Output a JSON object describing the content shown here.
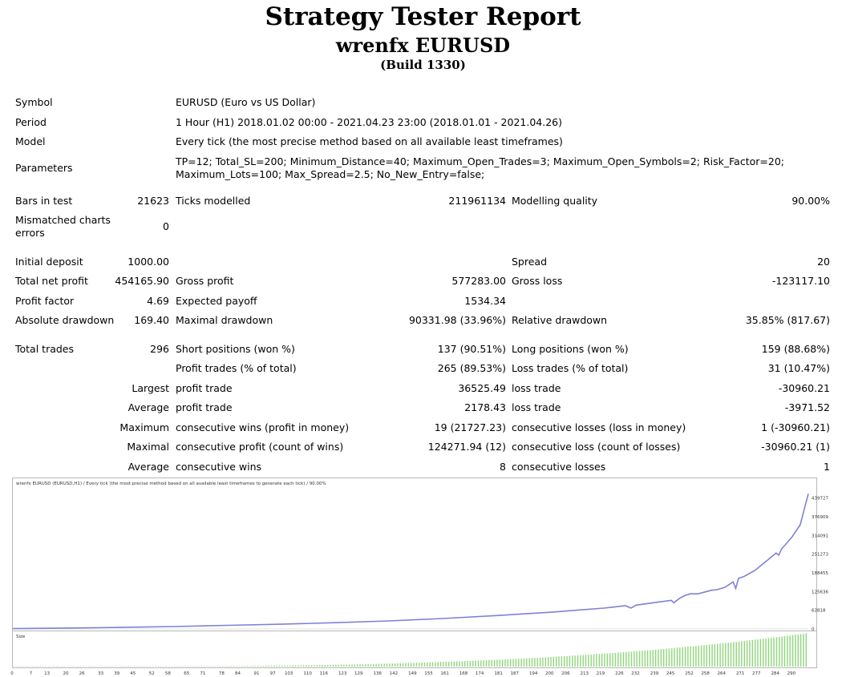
{
  "header": {
    "title": "Strategy Tester Report",
    "subtitle": "wrenfx EURUSD",
    "build": "(Build 1330)"
  },
  "info": {
    "symbol_label": "Symbol",
    "symbol_value": "EURUSD (Euro vs US Dollar)",
    "period_label": "Period",
    "period_value": "1 Hour (H1) 2018.01.02 00:00 - 2021.04.23 23:00 (2018.01.01 - 2021.04.26)",
    "model_label": "Model",
    "model_value": "Every tick (the most precise method based on all available least timeframes)",
    "parameters_label": "Parameters",
    "parameters_line1": "TP=12; Total_SL=200; Minimum_Distance=40; Maximum_Open_Trades=3; Maximum_Open_Symbols=2; Risk_Factor=20;",
    "parameters_line2": "Maximum_Lots=100; Max_Spread=2.5; No_New_Entry=false;"
  },
  "test": {
    "bars_label": "Bars in test",
    "bars_value": "21623",
    "ticks_label": "Ticks modelled",
    "ticks_value": "211961134",
    "quality_label": "Modelling quality",
    "quality_value": "90.00%",
    "mismatch_label_1": "Mismatched charts",
    "mismatch_label_2": "errors",
    "mismatch_value": "0"
  },
  "results": {
    "initial_deposit_label": "Initial deposit",
    "initial_deposit": "1000.00",
    "spread_label": "Spread",
    "spread": "20",
    "net_profit_label": "Total net profit",
    "net_profit": "454165.90",
    "gross_profit_label": "Gross profit",
    "gross_profit": "577283.00",
    "gross_loss_label": "Gross loss",
    "gross_loss": "-123117.10",
    "profit_factor_label": "Profit factor",
    "profit_factor": "4.69",
    "expected_payoff_label": "Expected payoff",
    "expected_payoff": "1534.34",
    "abs_dd_label": "Absolute drawdown",
    "abs_dd": "169.40",
    "max_dd_label": "Maximal drawdown",
    "max_dd": "90331.98 (33.96%)",
    "rel_dd_label": "Relative drawdown",
    "rel_dd": "35.85% (817.67)"
  },
  "trades": {
    "total_label": "Total trades",
    "total": "296",
    "short_label": "Short positions (won %)",
    "short": "137 (90.51%)",
    "long_label": "Long positions (won %)",
    "long": "159 (88.68%)",
    "profit_trades_label": "Profit trades (% of total)",
    "profit_trades": "265 (89.53%)",
    "loss_trades_label": "Loss trades (% of total)",
    "loss_trades": "31 (10.47%)",
    "largest_label": "Largest",
    "largest_profit_label": "profit trade",
    "largest_profit": "36525.49",
    "largest_loss_label": "loss trade",
    "largest_loss": "-30960.21",
    "average_label": "Average",
    "average_profit_label": "profit trade",
    "average_profit": "2178.43",
    "average_loss_label": "loss trade",
    "average_loss": "-3971.52",
    "maximum_label": "Maximum",
    "max_wins_label": "consecutive wins (profit in money)",
    "max_wins": "19 (21727.23)",
    "max_losses_label": "consecutive losses (loss in money)",
    "max_losses": "1 (-30960.21)",
    "maximal_label": "Maximal",
    "maximal_profit_label": "consecutive profit (count of wins)",
    "maximal_profit": "124271.94 (12)",
    "maximal_loss_label": "consecutive loss (count of losses)",
    "maximal_loss": "-30960.21 (1)",
    "avg_cons_label": "Average",
    "avg_cons_wins_label": "consecutive wins",
    "avg_cons_wins": "8",
    "avg_cons_losses_label": "consecutive losses",
    "avg_cons_losses": "1"
  },
  "chart_data": {
    "type": "line",
    "title": "wrenfx EURUSD (EURUSD,H1) / Every tick (the most precise method based on all available least timeframes to generate each tick) / 90.00%",
    "volume_label": "Size",
    "y_ticks": [
      "439727",
      "376909",
      "314091",
      "251273",
      "188455",
      "125636",
      "62818",
      "0"
    ],
    "y_tick_values": [
      439727,
      376909,
      314091,
      251273,
      188455,
      125636,
      62818,
      0
    ],
    "ylim": [
      0,
      490000
    ],
    "x_ticks": [
      "0",
      "7",
      "13",
      "20",
      "26",
      "33",
      "39",
      "45",
      "52",
      "58",
      "65",
      "71",
      "78",
      "84",
      "91",
      "97",
      "103",
      "110",
      "116",
      "123",
      "129",
      "136",
      "142",
      "149",
      "155",
      "161",
      "168",
      "174",
      "181",
      "187",
      "194",
      "200",
      "206",
      "213",
      "219",
      "226",
      "232",
      "239",
      "245",
      "252",
      "258",
      "264",
      "271",
      "277",
      "284",
      "290"
    ],
    "x_tick_values": [
      0,
      7,
      13,
      20,
      26,
      33,
      39,
      45,
      52,
      58,
      65,
      71,
      78,
      84,
      91,
      97,
      103,
      110,
      116,
      123,
      129,
      136,
      142,
      149,
      155,
      161,
      168,
      174,
      181,
      187,
      194,
      200,
      206,
      213,
      219,
      226,
      232,
      239,
      245,
      252,
      258,
      264,
      271,
      277,
      284,
      290
    ],
    "xlim": [
      0,
      296
    ],
    "series": [
      {
        "values": [
          [
            0,
            1000
          ],
          [
            20,
            3000
          ],
          [
            40,
            5000
          ],
          [
            60,
            8000
          ],
          [
            80,
            12000
          ],
          [
            100,
            16000
          ],
          [
            120,
            21000
          ],
          [
            140,
            27000
          ],
          [
            160,
            35000
          ],
          [
            180,
            45000
          ],
          [
            200,
            56000
          ],
          [
            210,
            63000
          ],
          [
            220,
            70000
          ],
          [
            228,
            78000
          ],
          [
            230,
            70000
          ],
          [
            232,
            80000
          ],
          [
            240,
            90000
          ],
          [
            245,
            96000
          ],
          [
            246,
            88000
          ],
          [
            248,
            102000
          ],
          [
            250,
            112000
          ],
          [
            252,
            118000
          ],
          [
            255,
            118000
          ],
          [
            260,
            130000
          ],
          [
            262,
            132000
          ],
          [
            265,
            140000
          ],
          [
            268,
            158000
          ],
          [
            269,
            136000
          ],
          [
            270,
            170000
          ],
          [
            272,
            176000
          ],
          [
            276,
            196000
          ],
          [
            280,
            225000
          ],
          [
            284,
            255000
          ],
          [
            285,
            248000
          ],
          [
            286,
            268000
          ],
          [
            290,
            310000
          ],
          [
            293,
            350000
          ],
          [
            296,
            454166
          ]
        ]
      }
    ],
    "volume_color": "#8fd67a",
    "line_color": "#8080d8"
  }
}
